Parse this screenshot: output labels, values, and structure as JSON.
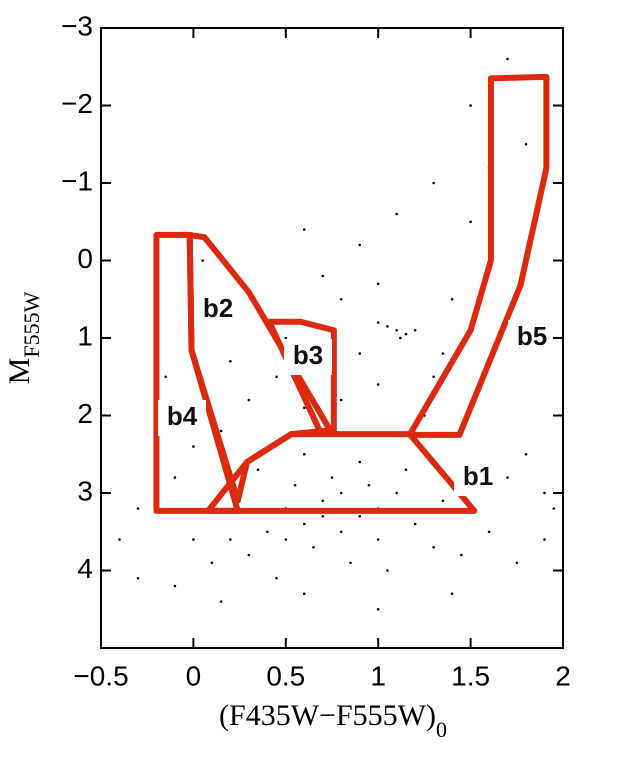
{
  "chart_data": {
    "type": "scatter",
    "xlabel": {
      "main": "(F435W−F555W)",
      "sub": "0"
    },
    "ylabel": {
      "main": "M",
      "sub": "F555W"
    },
    "xlim": [
      -0.5,
      2
    ],
    "ylim": [
      -3,
      5
    ],
    "y_inverted": true,
    "xticks": [
      {
        "value": -0.5,
        "label": "−0.5"
      },
      0,
      0.5,
      1,
      1.5,
      2
    ],
    "yticks": [
      {
        "value": -3,
        "label": "−3"
      },
      {
        "value": -2,
        "label": "−2"
      },
      {
        "value": -1,
        "label": "−1"
      },
      0,
      1,
      2,
      3,
      4
    ],
    "point_color": "#000000",
    "region_color": "#dd2a0f",
    "x": [
      0.5,
      0.6,
      0.7,
      0.8,
      0.9,
      1.0,
      0.4,
      0.3,
      0.55,
      0.75,
      0.95,
      1.1,
      1.2,
      1.3,
      0.65,
      0.85,
      1.05,
      0.45,
      0.2,
      0.1,
      -0.1,
      1.45,
      1.6,
      1.75,
      1.9,
      0.35,
      0.6,
      0.9,
      1.15,
      1.35,
      0.15,
      0.6,
      1.0,
      1.4,
      -0.3,
      0.0,
      0.8,
      0.7,
      0.5,
      1.0,
      1.05,
      1.1,
      1.15,
      1.0,
      1.2,
      1.12,
      1.3,
      1.4,
      1.5,
      1.6,
      1.8,
      1.25,
      1.35,
      1.0,
      0.9,
      0.8,
      0.1,
      0.2,
      0.3,
      0.45,
      0.6,
      0.05,
      0.15,
      0.5,
      0.7,
      0.9,
      1.1,
      0.6,
      1.3,
      1.0,
      0.8,
      1.5,
      1.7,
      -0.3,
      -0.4,
      -0.1,
      0.0,
      -0.15,
      0.05,
      1.8,
      1.9,
      1.95,
      1.7
    ],
    "y": [
      3.2,
      3.4,
      3.1,
      3.5,
      3.3,
      3.6,
      3.5,
      3.8,
      2.9,
      2.8,
      2.9,
      3.0,
      3.4,
      3.7,
      3.7,
      3.9,
      4.0,
      4.1,
      3.6,
      3.9,
      4.2,
      3.8,
      3.5,
      3.9,
      3.6,
      2.7,
      2.5,
      2.6,
      2.7,
      3.1,
      4.4,
      4.3,
      4.5,
      4.3,
      4.1,
      3.6,
      3.0,
      3.3,
      3.6,
      3.2,
      0.85,
      0.9,
      0.95,
      0.8,
      0.9,
      1.0,
      1.5,
      0.5,
      -0.5,
      -1.2,
      -1.5,
      2.0,
      1.2,
      1.6,
      1.2,
      1.8,
      0.5,
      1.3,
      1.8,
      1.5,
      1.9,
      0.0,
      2.2,
      1.0,
      0.2,
      -0.2,
      -0.6,
      -0.4,
      -1.0,
      0.3,
      0.5,
      -2.0,
      -2.6,
      3.2,
      3.6,
      2.8,
      2.4,
      1.5,
      1.9,
      2.5,
      3.0,
      3.2,
      2.8
    ],
    "regions": [
      {
        "name": "b1",
        "vertices": [
          [
            0.08,
            3.23
          ],
          [
            0.29,
            2.6
          ],
          [
            0.53,
            2.24
          ],
          [
            1.17,
            2.24
          ],
          [
            1.52,
            3.23
          ]
        ]
      },
      {
        "name": "b2",
        "vertices": [
          [
            -0.02,
            -0.33
          ],
          [
            0.06,
            -0.3
          ],
          [
            0.3,
            0.41
          ],
          [
            0.74,
            2.19
          ],
          [
            0.53,
            2.24
          ],
          [
            0.29,
            2.6
          ],
          [
            0.24,
            3.1
          ],
          [
            -0.01,
            1.16
          ]
        ]
      },
      {
        "name": "b3",
        "vertices": [
          [
            0.41,
            0.79
          ],
          [
            0.58,
            0.79
          ],
          [
            0.76,
            0.9
          ],
          [
            0.76,
            2.23
          ],
          [
            0.69,
            2.23
          ]
        ]
      },
      {
        "name": "b4",
        "vertices": [
          [
            -0.2,
            -0.33
          ],
          [
            -0.02,
            -0.33
          ],
          [
            -0.01,
            1.16
          ],
          [
            0.24,
            3.23
          ],
          [
            -0.2,
            3.23
          ]
        ]
      },
      {
        "name": "b5",
        "vertices": [
          [
            1.61,
            -2.35
          ],
          [
            1.91,
            -2.37
          ],
          [
            1.91,
            -1.19
          ],
          [
            1.77,
            0.32
          ],
          [
            1.44,
            2.25
          ],
          [
            1.17,
            2.25
          ],
          [
            1.5,
            0.9
          ],
          [
            1.61,
            0
          ]
        ]
      }
    ]
  }
}
